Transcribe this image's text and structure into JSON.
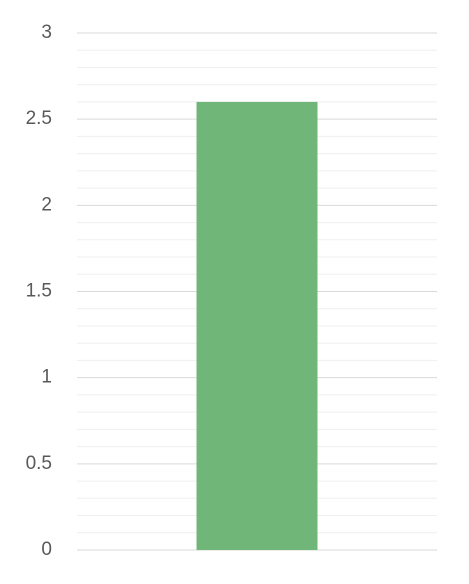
{
  "chart_data": {
    "type": "bar",
    "categories": [
      null
    ],
    "values": [
      2.6
    ],
    "color": "#71b679",
    "ylim": [
      0,
      3
    ],
    "yticks": [
      0,
      0.5,
      1,
      1.5,
      2,
      2.5,
      3
    ],
    "minor_yticks": [
      0.1,
      0.2,
      0.3,
      0.4,
      0.6,
      0.7,
      0.8,
      0.9,
      1.1,
      1.2,
      1.3,
      1.4,
      1.6,
      1.7,
      1.8,
      1.9,
      2.1,
      2.2,
      2.3,
      2.4,
      2.6,
      2.7,
      2.8,
      2.9
    ],
    "grid": true
  }
}
